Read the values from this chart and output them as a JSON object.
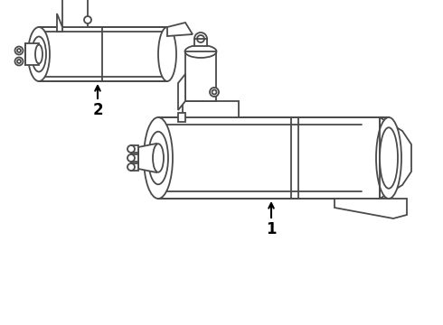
{
  "background_color": "#ffffff",
  "line_color": "#4a4a4a",
  "line_width": 1.3,
  "label1": "1",
  "label2": "2",
  "fig_width": 4.9,
  "fig_height": 3.6,
  "dpi": 100
}
